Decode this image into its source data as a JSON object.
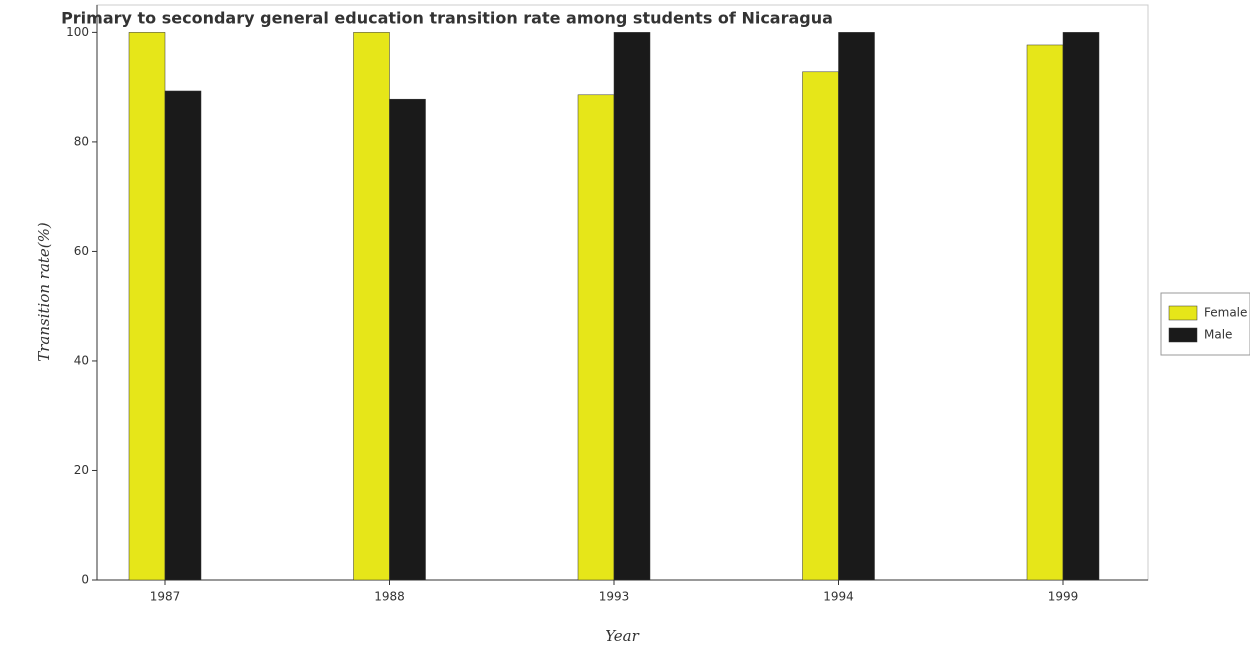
{
  "chart_data": {
    "type": "bar",
    "title": "Primary to secondary general education transition rate among students of Nicaragua",
    "x_label": "Year",
    "y_label": "Transition rate(%)",
    "categories": [
      "1987",
      "1988",
      "1993",
      "1994",
      "1999"
    ],
    "series": [
      {
        "name": "Female",
        "color": "#e6e619",
        "values": [
          100,
          100,
          88.6,
          92.8,
          97.7
        ]
      },
      {
        "name": "Male",
        "color": "#1a1a1a",
        "values": [
          89.3,
          87.8,
          100,
          100,
          100
        ]
      }
    ],
    "ylim": [
      0,
      105
    ],
    "yticks": [
      0,
      20,
      40,
      60,
      80,
      100
    ],
    "grid": false,
    "legend": "right"
  }
}
